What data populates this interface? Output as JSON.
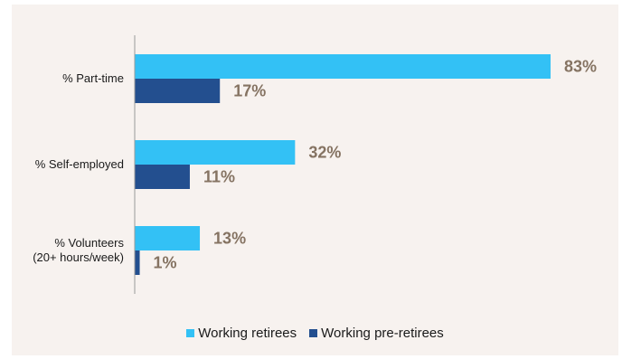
{
  "chart_data": {
    "type": "bar",
    "orientation": "horizontal",
    "categories": [
      [
        "% Part-time"
      ],
      [
        "% Self-employed"
      ],
      [
        "% Volunteers",
        "(20+ hours/week)"
      ]
    ],
    "series": [
      {
        "name": "Working retirees",
        "color": "#33c1f5",
        "values": [
          83,
          32,
          13
        ],
        "labels": [
          "83%",
          "32%",
          "13%"
        ]
      },
      {
        "name": "Working pre-retirees",
        "color": "#234f8f",
        "values": [
          17,
          11,
          1
        ],
        "labels": [
          "17%",
          "11%",
          "1%"
        ]
      }
    ],
    "xlim": [
      0,
      83
    ],
    "grid": false,
    "legend_position": "bottom",
    "value_label_color": "#857362"
  }
}
